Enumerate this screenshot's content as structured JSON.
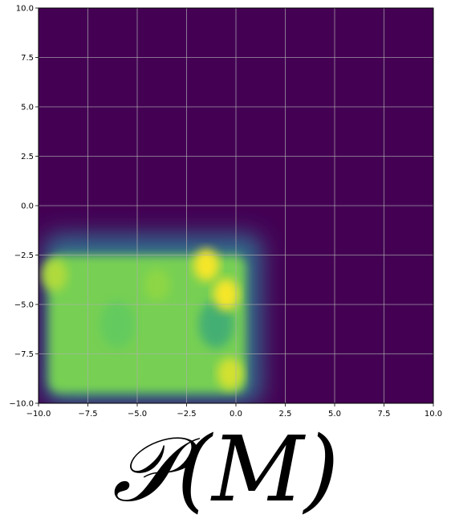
{
  "chart_data": {
    "type": "heatmap",
    "title": "",
    "xlabel": "",
    "ylabel": "",
    "xlim": [
      -10.0,
      10.0
    ],
    "ylim": [
      -10.0,
      10.0
    ],
    "x_ticks": [
      "−10.0",
      "−7.5",
      "−5.0",
      "−2.5",
      "0.0",
      "2.5",
      "5.0",
      "7.5",
      "10.0"
    ],
    "y_ticks": [
      "10.0",
      "7.5",
      "5.0",
      "2.5",
      "0.0",
      "−2.5",
      "−5.0",
      "−7.5",
      "−10.0"
    ],
    "x_tick_values": [
      -10.0,
      -7.5,
      -5.0,
      -2.5,
      0.0,
      2.5,
      5.0,
      7.5,
      10.0
    ],
    "y_tick_values": [
      10.0,
      7.5,
      5.0,
      2.5,
      0.0,
      -2.5,
      -5.0,
      -7.5,
      -10.0
    ],
    "grid": true,
    "colormap": "viridis",
    "colors": {
      "low": "#440154",
      "mid": "#21908d",
      "high_green": "#8fd744",
      "peak": "#fde725",
      "grid": "#b0b0b0"
    },
    "density_region": {
      "x_range": [
        -9.5,
        0.5
      ],
      "y_range": [
        -9.5,
        -2.5
      ],
      "level": 0.8
    },
    "hotspots": [
      {
        "x": -1.5,
        "y": -3.0,
        "level": 1.0
      },
      {
        "x": -0.5,
        "y": -4.5,
        "level": 1.0
      },
      {
        "x": -0.3,
        "y": -8.5,
        "level": 0.95
      },
      {
        "x": -9.2,
        "y": -3.5,
        "level": 0.9
      },
      {
        "x": -4.0,
        "y": -4.0,
        "level": 0.85
      }
    ],
    "coolspots": [
      {
        "x": -1.0,
        "y": -6.0,
        "level": 0.6
      },
      {
        "x": -6.0,
        "y": -6.0,
        "level": 0.75
      }
    ]
  },
  "caption": {
    "text": "𝒫(M)"
  }
}
